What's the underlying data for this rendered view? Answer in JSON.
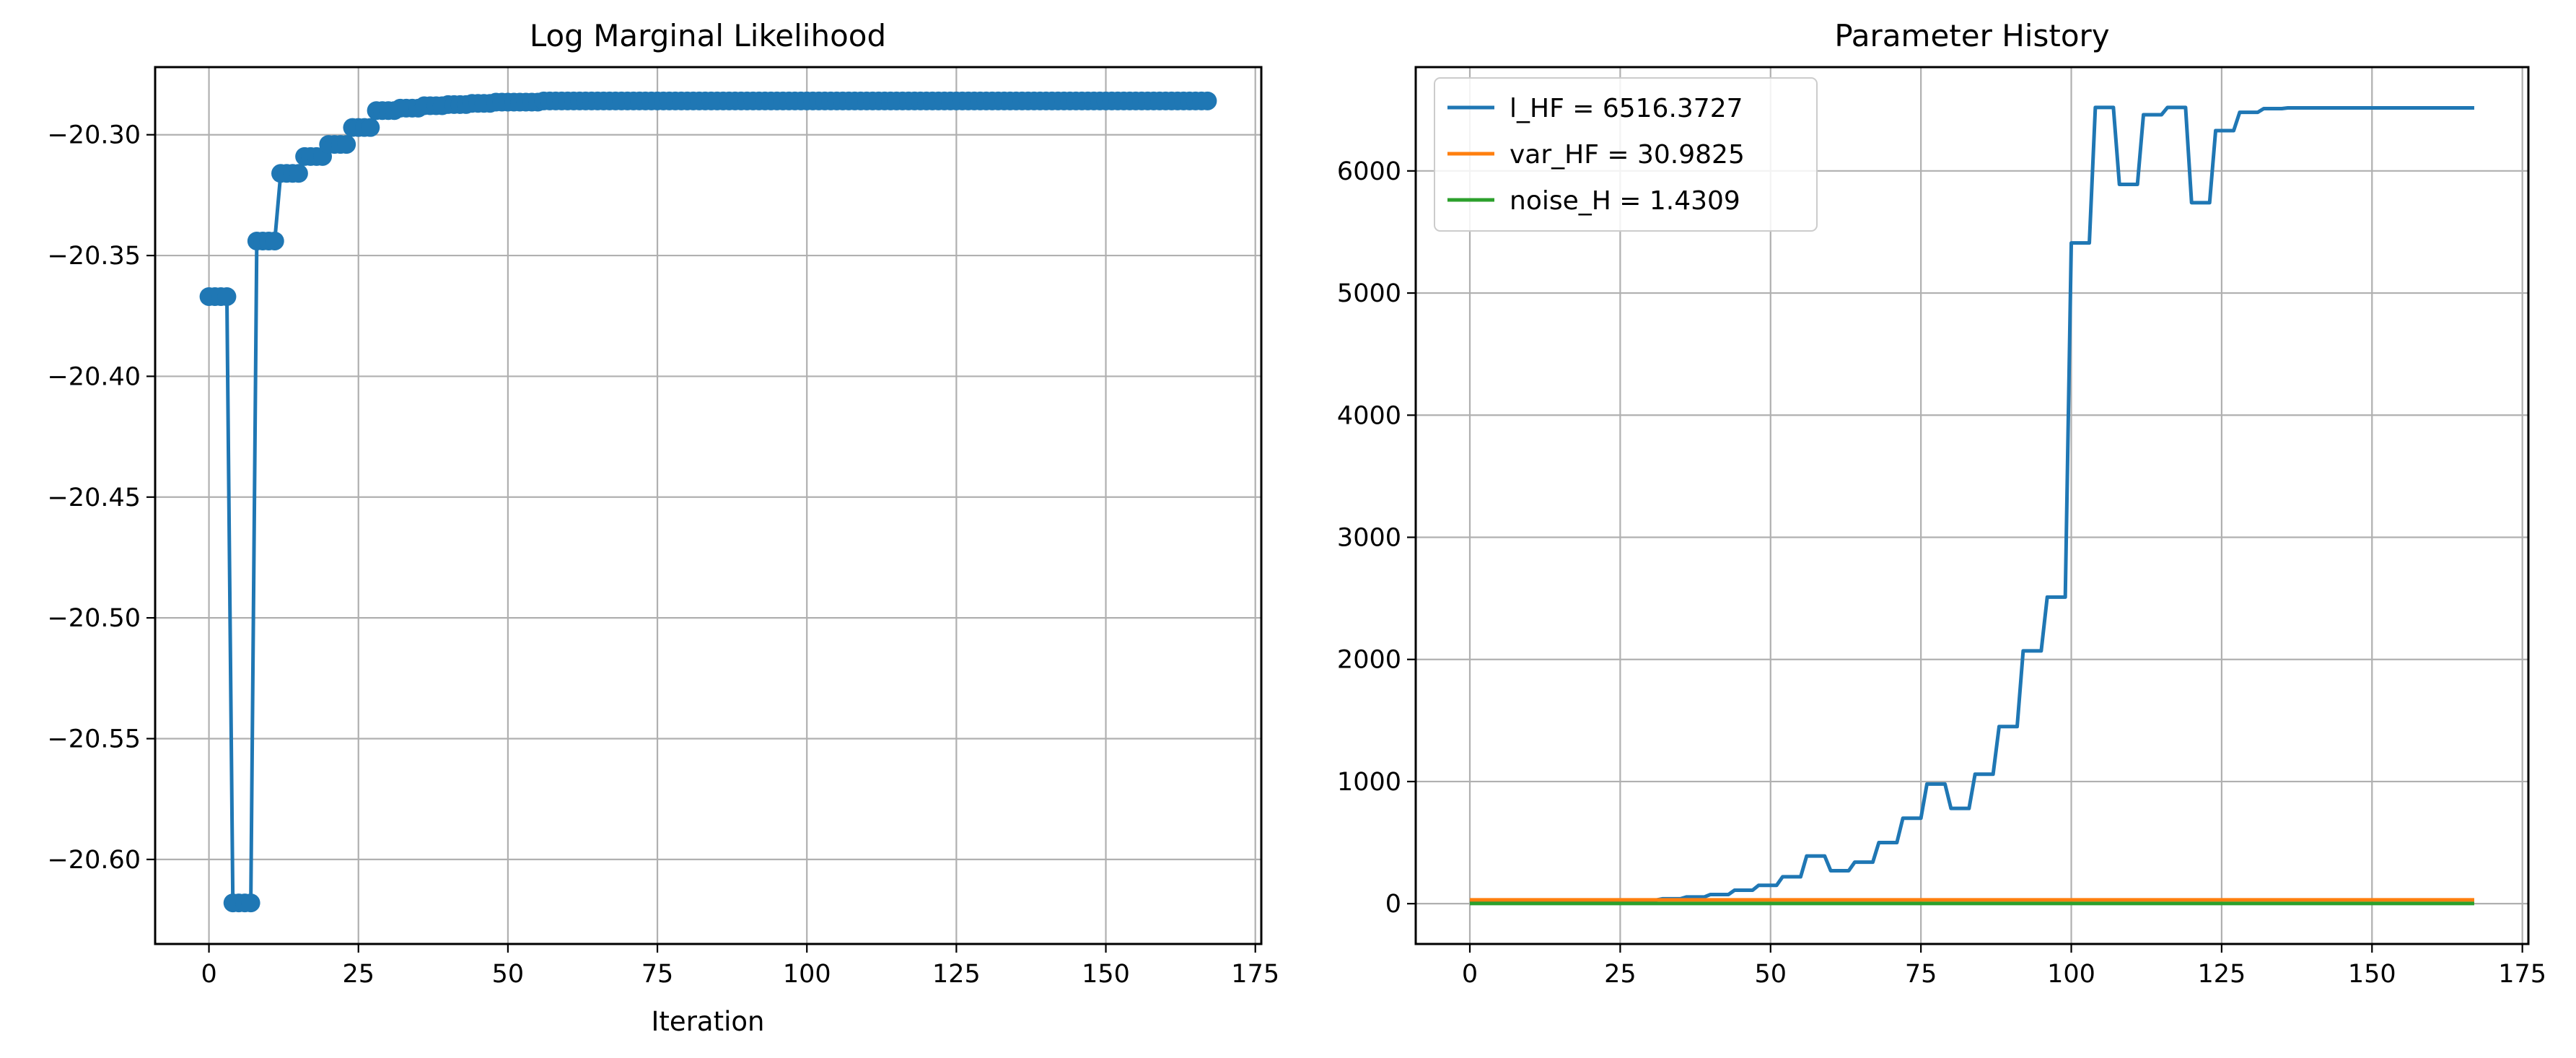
{
  "chart_data": [
    {
      "type": "line",
      "title": "Log Marginal Likelihood",
      "xlabel": "Iteration",
      "ylabel": "",
      "markers": true,
      "grid": true,
      "xlim": [
        -9,
        176
      ],
      "ylim": [
        -20.635,
        -20.272
      ],
      "xticks": [
        0,
        25,
        50,
        75,
        100,
        125,
        150,
        175
      ],
      "yticks": [
        -20.3,
        -20.35,
        -20.4,
        -20.45,
        -20.5,
        -20.55,
        -20.6
      ],
      "xtick_labels": [
        "0",
        "25",
        "50",
        "75",
        "100",
        "125",
        "150",
        "175"
      ],
      "ytick_labels": [
        "−20.30",
        "−20.35",
        "−20.40",
        "−20.45",
        "−20.50",
        "−20.55",
        "−20.60"
      ],
      "series": [
        {
          "color": "#1f77b4",
          "x_start": 0,
          "x_end": 167,
          "segments": [
            {
              "x": [
                0,
                3
              ],
              "y": -20.367
            },
            {
              "x": [
                4,
                7
              ],
              "y": -20.618
            },
            {
              "x": [
                8,
                11
              ],
              "y": -20.344
            },
            {
              "x": [
                12,
                15
              ],
              "y": -20.316
            },
            {
              "x": [
                16,
                19
              ],
              "y": -20.309
            },
            {
              "x": [
                20,
                23
              ],
              "y": -20.304
            },
            {
              "x": [
                24,
                27
              ],
              "y": -20.297
            },
            {
              "x": [
                28,
                31
              ],
              "y": -20.29
            },
            {
              "x": [
                32,
                35
              ],
              "y": -20.289
            },
            {
              "x": [
                36,
                39
              ],
              "y": -20.288
            },
            {
              "x": [
                40,
                43
              ],
              "y": -20.2875
            },
            {
              "x": [
                44,
                47
              ],
              "y": -20.287
            },
            {
              "x": [
                48,
                55
              ],
              "y": -20.2865
            },
            {
              "x": [
                56,
                167
              ],
              "y": -20.286
            }
          ]
        }
      ]
    },
    {
      "type": "line",
      "title": "Parameter History",
      "xlabel": "",
      "ylabel": "",
      "markers": false,
      "grid": true,
      "legend_position": "top-left",
      "xlim": [
        -9,
        176
      ],
      "ylim": [
        -330,
        6850
      ],
      "xticks": [
        0,
        25,
        50,
        75,
        100,
        125,
        150,
        175
      ],
      "yticks": [
        0,
        1000,
        2000,
        3000,
        4000,
        5000,
        6000
      ],
      "xtick_labels": [
        "0",
        "25",
        "50",
        "75",
        "100",
        "125",
        "150",
        "175"
      ],
      "ytick_labels": [
        "0",
        "1000",
        "2000",
        "3000",
        "4000",
        "5000",
        "6000"
      ],
      "series": [
        {
          "name": "l_HF = 6516.3727",
          "color": "#1f77b4",
          "x_start": 0,
          "x_end": 167,
          "segments": [
            {
              "x": [
                0,
                23
              ],
              "y": 5
            },
            {
              "x": [
                24,
                27
              ],
              "y": 25
            },
            {
              "x": [
                28,
                31
              ],
              "y": 30
            },
            {
              "x": [
                32,
                35
              ],
              "y": 40
            },
            {
              "x": [
                36,
                39
              ],
              "y": 55
            },
            {
              "x": [
                40,
                43
              ],
              "y": 75
            },
            {
              "x": [
                44,
                47
              ],
              "y": 110
            },
            {
              "x": [
                48,
                51
              ],
              "y": 150
            },
            {
              "x": [
                52,
                55
              ],
              "y": 220
            },
            {
              "x": [
                56,
                59
              ],
              "y": 390
            },
            {
              "x": [
                60,
                63
              ],
              "y": 270
            },
            {
              "x": [
                64,
                67
              ],
              "y": 340
            },
            {
              "x": [
                68,
                71
              ],
              "y": 500
            },
            {
              "x": [
                72,
                75
              ],
              "y": 700
            },
            {
              "x": [
                76,
                79
              ],
              "y": 980
            },
            {
              "x": [
                80,
                83
              ],
              "y": 780
            },
            {
              "x": [
                84,
                87
              ],
              "y": 1060
            },
            {
              "x": [
                88,
                91
              ],
              "y": 1450
            },
            {
              "x": [
                92,
                95
              ],
              "y": 2070
            },
            {
              "x": [
                96,
                99
              ],
              "y": 2510
            },
            {
              "x": [
                100,
                103
              ],
              "y": 5410
            },
            {
              "x": [
                104,
                107
              ],
              "y": 6520
            },
            {
              "x": [
                108,
                111
              ],
              "y": 5890
            },
            {
              "x": [
                112,
                115
              ],
              "y": 6460
            },
            {
              "x": [
                116,
                119
              ],
              "y": 6520
            },
            {
              "x": [
                120,
                123
              ],
              "y": 5740
            },
            {
              "x": [
                124,
                127
              ],
              "y": 6330
            },
            {
              "x": [
                128,
                131
              ],
              "y": 6480
            },
            {
              "x": [
                132,
                135
              ],
              "y": 6510
            },
            {
              "x": [
                136,
                167
              ],
              "y": 6516.3727
            }
          ]
        },
        {
          "name": "var_HF = 30.9825",
          "color": "#ff7f0e",
          "x": [
            0,
            167
          ],
          "y": [
            30.9825,
            30.9825
          ]
        },
        {
          "name": "noise_H = 1.4309",
          "color": "#2ca02c",
          "x": [
            0,
            167
          ],
          "y": [
            1.4309,
            1.4309
          ]
        }
      ]
    }
  ]
}
